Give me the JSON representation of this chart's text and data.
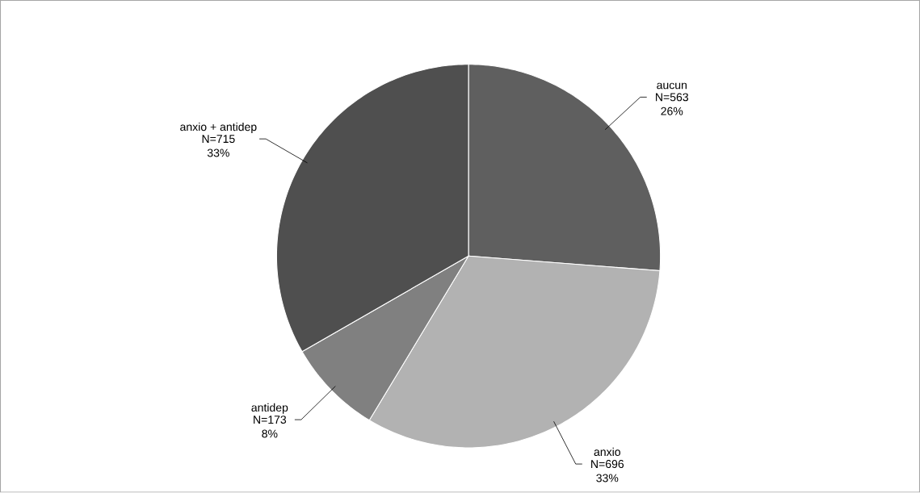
{
  "chart_data": {
    "type": "pie",
    "categories": [
      "aucun",
      "anxio",
      "antidep",
      "anxio + antidep"
    ],
    "values": [
      563,
      696,
      173,
      715
    ],
    "value_labels": [
      "N=563 26%",
      "N=696 33%",
      "N=173 8%",
      "N=715 33%"
    ],
    "colors": [
      "#5f5f5f",
      "#b2b2b2",
      "#808080",
      "#4f4f4f"
    ]
  }
}
